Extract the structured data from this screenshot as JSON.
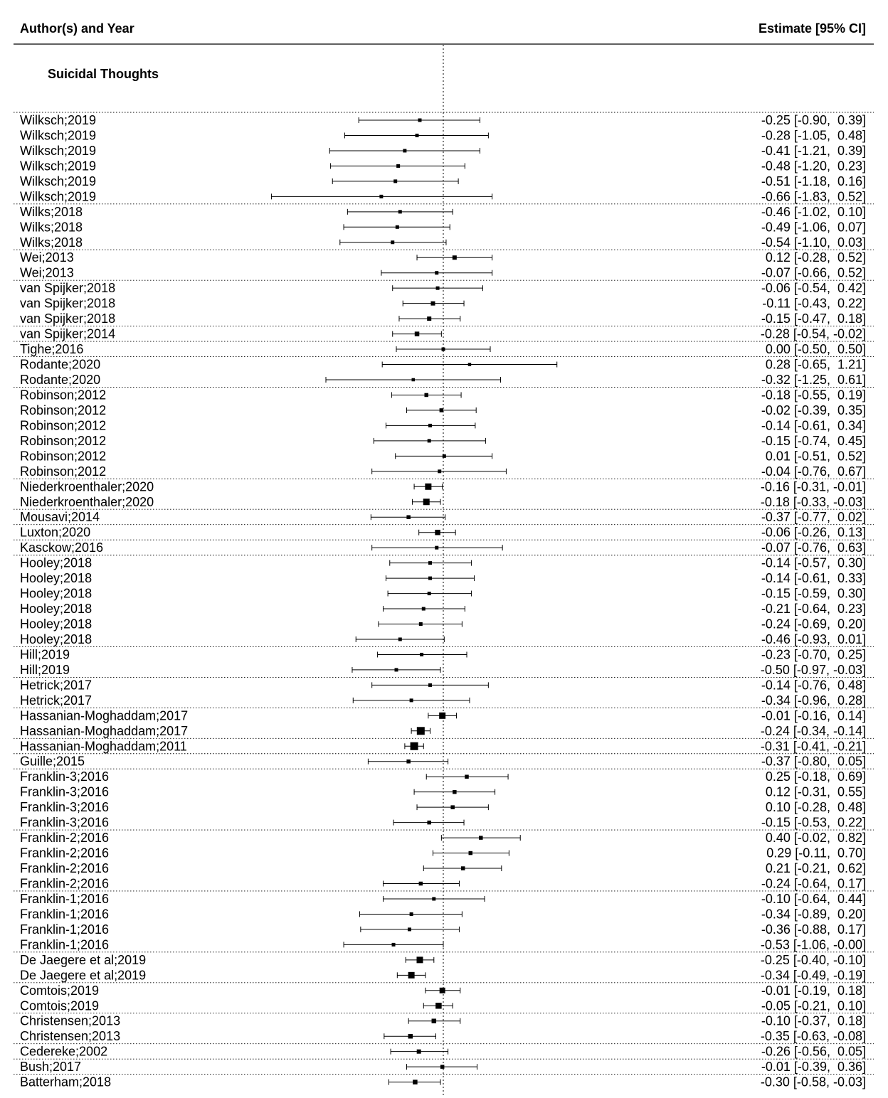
{
  "header": {
    "left": "Author(s) and Year",
    "right": "Estimate [95% CI]"
  },
  "chart_data": {
    "type": "forest",
    "title": "",
    "subgroup": "Suicidal Thoughts",
    "reference_line": 0,
    "xlim": [
      -2.02,
      1.3
    ],
    "rows": [
      {
        "study": "Wilksch;2019",
        "est": -0.25,
        "lo": -0.9,
        "hi": 0.39,
        "ci": "-0.25 [-0.90,  0.39]",
        "w": 1
      },
      {
        "study": "Wilksch;2019",
        "est": -0.28,
        "lo": -1.05,
        "hi": 0.48,
        "ci": "-0.28 [-1.05,  0.48]",
        "w": 1
      },
      {
        "study": "Wilksch;2019",
        "est": -0.41,
        "lo": -1.21,
        "hi": 0.39,
        "ci": "-0.41 [-1.21,  0.39]",
        "w": 1
      },
      {
        "study": "Wilksch;2019",
        "est": -0.48,
        "lo": -1.2,
        "hi": 0.23,
        "ci": "-0.48 [-1.20,  0.23]",
        "w": 1
      },
      {
        "study": "Wilksch;2019",
        "est": -0.51,
        "lo": -1.18,
        "hi": 0.16,
        "ci": "-0.51 [-1.18,  0.16]",
        "w": 1
      },
      {
        "study": "Wilksch;2019",
        "est": -0.66,
        "lo": -1.83,
        "hi": 0.52,
        "ci": "-0.66 [-1.83,  0.52]",
        "w": 1
      },
      {
        "study": "Wilks;2018",
        "est": -0.46,
        "lo": -1.02,
        "hi": 0.1,
        "ci": "-0.46 [-1.02,  0.10]",
        "w": 1
      },
      {
        "study": "Wilks;2018",
        "est": -0.49,
        "lo": -1.06,
        "hi": 0.07,
        "ci": "-0.49 [-1.06,  0.07]",
        "w": 1
      },
      {
        "study": "Wilks;2018",
        "est": -0.54,
        "lo": -1.1,
        "hi": 0.03,
        "ci": "-0.54 [-1.10,  0.03]",
        "w": 1
      },
      {
        "study": "Wei;2013",
        "est": 0.12,
        "lo": -0.28,
        "hi": 0.52,
        "ci": "0.12 [-0.28,  0.52]",
        "w": 1.2
      },
      {
        "study": "Wei;2013",
        "est": -0.07,
        "lo": -0.66,
        "hi": 0.52,
        "ci": "-0.07 [-0.66,  0.52]",
        "w": 1
      },
      {
        "study": "van Spijker;2018",
        "est": -0.06,
        "lo": -0.54,
        "hi": 0.42,
        "ci": "-0.06 [-0.54,  0.42]",
        "w": 1
      },
      {
        "study": "van Spijker;2018",
        "est": -0.11,
        "lo": -0.43,
        "hi": 0.22,
        "ci": "-0.11 [-0.43,  0.22]",
        "w": 1.2
      },
      {
        "study": "van Spijker;2018",
        "est": -0.15,
        "lo": -0.47,
        "hi": 0.18,
        "ci": "-0.15 [-0.47,  0.18]",
        "w": 1.2
      },
      {
        "study": "van Spijker;2014",
        "est": -0.28,
        "lo": -0.54,
        "hi": -0.02,
        "ci": "-0.28 [-0.54, -0.02]",
        "w": 1.3
      },
      {
        "study": "Tighe;2016",
        "est": 0.0,
        "lo": -0.5,
        "hi": 0.5,
        "ci": "0.00 [-0.50,  0.50]",
        "w": 1
      },
      {
        "study": "Rodante;2020",
        "est": 0.28,
        "lo": -0.65,
        "hi": 1.21,
        "ci": "0.28 [-0.65,  1.21]",
        "w": 0.9
      },
      {
        "study": "Rodante;2020",
        "est": -0.32,
        "lo": -1.25,
        "hi": 0.61,
        "ci": "-0.32 [-1.25,  0.61]",
        "w": 0.9
      },
      {
        "study": "Robinson;2012",
        "est": -0.18,
        "lo": -0.55,
        "hi": 0.19,
        "ci": "-0.18 [-0.55,  0.19]",
        "w": 1.1
      },
      {
        "study": "Robinson;2012",
        "est": -0.02,
        "lo": -0.39,
        "hi": 0.35,
        "ci": "-0.02 [-0.39,  0.35]",
        "w": 1.1
      },
      {
        "study": "Robinson;2012",
        "est": -0.14,
        "lo": -0.61,
        "hi": 0.34,
        "ci": "-0.14 [-0.61,  0.34]",
        "w": 1
      },
      {
        "study": "Robinson;2012",
        "est": -0.15,
        "lo": -0.74,
        "hi": 0.45,
        "ci": "-0.15 [-0.74,  0.45]",
        "w": 1
      },
      {
        "study": "Robinson;2012",
        "est": 0.01,
        "lo": -0.51,
        "hi": 0.52,
        "ci": "0.01 [-0.51,  0.52]",
        "w": 1
      },
      {
        "study": "Robinson;2012",
        "est": -0.04,
        "lo": -0.76,
        "hi": 0.67,
        "ci": "-0.04 [-0.76,  0.67]",
        "w": 1
      },
      {
        "study": "Niederkroenthaler;2020",
        "est": -0.16,
        "lo": -0.31,
        "hi": -0.01,
        "ci": "-0.16 [-0.31, -0.01]",
        "w": 1.8
      },
      {
        "study": "Niederkroenthaler;2020",
        "est": -0.18,
        "lo": -0.33,
        "hi": -0.03,
        "ci": "-0.18 [-0.33, -0.03]",
        "w": 1.8
      },
      {
        "study": "Mousavi;2014",
        "est": -0.37,
        "lo": -0.77,
        "hi": 0.02,
        "ci": "-0.37 [-0.77,  0.02]",
        "w": 1.1
      },
      {
        "study": "Luxton;2020",
        "est": -0.06,
        "lo": -0.26,
        "hi": 0.13,
        "ci": "-0.06 [-0.26,  0.13]",
        "w": 1.5
      },
      {
        "study": "Kasckow;2016",
        "est": -0.07,
        "lo": -0.76,
        "hi": 0.63,
        "ci": "-0.07 [-0.76,  0.63]",
        "w": 1
      },
      {
        "study": "Hooley;2018",
        "est": -0.14,
        "lo": -0.57,
        "hi": 0.3,
        "ci": "-0.14 [-0.57,  0.30]",
        "w": 1
      },
      {
        "study": "Hooley;2018",
        "est": -0.14,
        "lo": -0.61,
        "hi": 0.33,
        "ci": "-0.14 [-0.61,  0.33]",
        "w": 1
      },
      {
        "study": "Hooley;2018",
        "est": -0.15,
        "lo": -0.59,
        "hi": 0.3,
        "ci": "-0.15 [-0.59,  0.30]",
        "w": 1
      },
      {
        "study": "Hooley;2018",
        "est": -0.21,
        "lo": -0.64,
        "hi": 0.23,
        "ci": "-0.21 [-0.64,  0.23]",
        "w": 1
      },
      {
        "study": "Hooley;2018",
        "est": -0.24,
        "lo": -0.69,
        "hi": 0.2,
        "ci": "-0.24 [-0.69,  0.20]",
        "w": 1
      },
      {
        "study": "Hooley;2018",
        "est": -0.46,
        "lo": -0.93,
        "hi": 0.01,
        "ci": "-0.46 [-0.93,  0.01]",
        "w": 1
      },
      {
        "study": "Hill;2019",
        "est": -0.23,
        "lo": -0.7,
        "hi": 0.25,
        "ci": "-0.23 [-0.70,  0.25]",
        "w": 1
      },
      {
        "study": "Hill;2019",
        "est": -0.5,
        "lo": -0.97,
        "hi": -0.03,
        "ci": "-0.50 [-0.97, -0.03]",
        "w": 1
      },
      {
        "study": "Hetrick;2017",
        "est": -0.14,
        "lo": -0.76,
        "hi": 0.48,
        "ci": "-0.14 [-0.76,  0.48]",
        "w": 1
      },
      {
        "study": "Hetrick;2017",
        "est": -0.34,
        "lo": -0.96,
        "hi": 0.28,
        "ci": "-0.34 [-0.96,  0.28]",
        "w": 1
      },
      {
        "study": "Hassanian-Moghaddam;2017",
        "est": -0.01,
        "lo": -0.16,
        "hi": 0.14,
        "ci": "-0.01 [-0.16,  0.14]",
        "w": 1.8
      },
      {
        "study": "Hassanian-Moghaddam;2017",
        "est": -0.24,
        "lo": -0.34,
        "hi": -0.14,
        "ci": "-0.24 [-0.34, -0.14]",
        "w": 2.2
      },
      {
        "study": "Hassanian-Moghaddam;2011",
        "est": -0.31,
        "lo": -0.41,
        "hi": -0.21,
        "ci": "-0.31 [-0.41, -0.21]",
        "w": 2.2
      },
      {
        "study": "Guille;2015",
        "est": -0.37,
        "lo": -0.8,
        "hi": 0.05,
        "ci": "-0.37 [-0.80,  0.05]",
        "w": 1.1
      },
      {
        "study": "Franklin-3;2016",
        "est": 0.25,
        "lo": -0.18,
        "hi": 0.69,
        "ci": "0.25 [-0.18,  0.69]",
        "w": 1.1
      },
      {
        "study": "Franklin-3;2016",
        "est": 0.12,
        "lo": -0.31,
        "hi": 0.55,
        "ci": "0.12 [-0.31,  0.55]",
        "w": 1.1
      },
      {
        "study": "Franklin-3;2016",
        "est": 0.1,
        "lo": -0.28,
        "hi": 0.48,
        "ci": "0.10 [-0.28,  0.48]",
        "w": 1.1
      },
      {
        "study": "Franklin-3;2016",
        "est": -0.15,
        "lo": -0.53,
        "hi": 0.22,
        "ci": "-0.15 [-0.53,  0.22]",
        "w": 1.1
      },
      {
        "study": "Franklin-2;2016",
        "est": 0.4,
        "lo": -0.02,
        "hi": 0.82,
        "ci": "0.40 [-0.02,  0.82]",
        "w": 1.1
      },
      {
        "study": "Franklin-2;2016",
        "est": 0.29,
        "lo": -0.11,
        "hi": 0.7,
        "ci": "0.29 [-0.11,  0.70]",
        "w": 1.1
      },
      {
        "study": "Franklin-2;2016",
        "est": 0.21,
        "lo": -0.21,
        "hi": 0.62,
        "ci": "0.21 [-0.21,  0.62]",
        "w": 1.1
      },
      {
        "study": "Franklin-2;2016",
        "est": -0.24,
        "lo": -0.64,
        "hi": 0.17,
        "ci": "-0.24 [-0.64,  0.17]",
        "w": 1.1
      },
      {
        "study": "Franklin-1;2016",
        "est": -0.1,
        "lo": -0.64,
        "hi": 0.44,
        "ci": "-0.10 [-0.64,  0.44]",
        "w": 1
      },
      {
        "study": "Franklin-1;2016",
        "est": -0.34,
        "lo": -0.89,
        "hi": 0.2,
        "ci": "-0.34 [-0.89,  0.20]",
        "w": 1
      },
      {
        "study": "Franklin-1;2016",
        "est": -0.36,
        "lo": -0.88,
        "hi": 0.17,
        "ci": "-0.36 [-0.88,  0.17]",
        "w": 1
      },
      {
        "study": "Franklin-1;2016",
        "est": -0.53,
        "lo": -1.06,
        "hi": -0.0,
        "ci": "-0.53 [-1.06, -0.00]",
        "w": 1
      },
      {
        "study": "De Jaegere et al;2019",
        "est": -0.25,
        "lo": -0.4,
        "hi": -0.1,
        "ci": "-0.25 [-0.40, -0.10]",
        "w": 1.8
      },
      {
        "study": "De Jaegere et al;2019",
        "est": -0.34,
        "lo": -0.49,
        "hi": -0.19,
        "ci": "-0.34 [-0.49, -0.19]",
        "w": 1.8
      },
      {
        "study": "Comtois;2019",
        "est": -0.01,
        "lo": -0.19,
        "hi": 0.18,
        "ci": "-0.01 [-0.19,  0.18]",
        "w": 1.6
      },
      {
        "study": "Comtois;2019",
        "est": -0.05,
        "lo": -0.21,
        "hi": 0.1,
        "ci": "-0.05 [-0.21,  0.10]",
        "w": 1.7
      },
      {
        "study": "Christensen;2013",
        "est": -0.1,
        "lo": -0.37,
        "hi": 0.18,
        "ci": "-0.10 [-0.37,  0.18]",
        "w": 1.3
      },
      {
        "study": "Christensen;2013",
        "est": -0.35,
        "lo": -0.63,
        "hi": -0.08,
        "ci": "-0.35 [-0.63, -0.08]",
        "w": 1.3
      },
      {
        "study": "Cedereke;2002",
        "est": -0.26,
        "lo": -0.56,
        "hi": 0.05,
        "ci": "-0.26 [-0.56,  0.05]",
        "w": 1.2
      },
      {
        "study": "Bush;2017",
        "est": -0.01,
        "lo": -0.39,
        "hi": 0.36,
        "ci": "-0.01 [-0.39,  0.36]",
        "w": 1.1
      },
      {
        "study": "Batterham;2018",
        "est": -0.3,
        "lo": -0.58,
        "hi": -0.03,
        "ci": "-0.30 [-0.58, -0.03]",
        "w": 1.3
      }
    ]
  }
}
